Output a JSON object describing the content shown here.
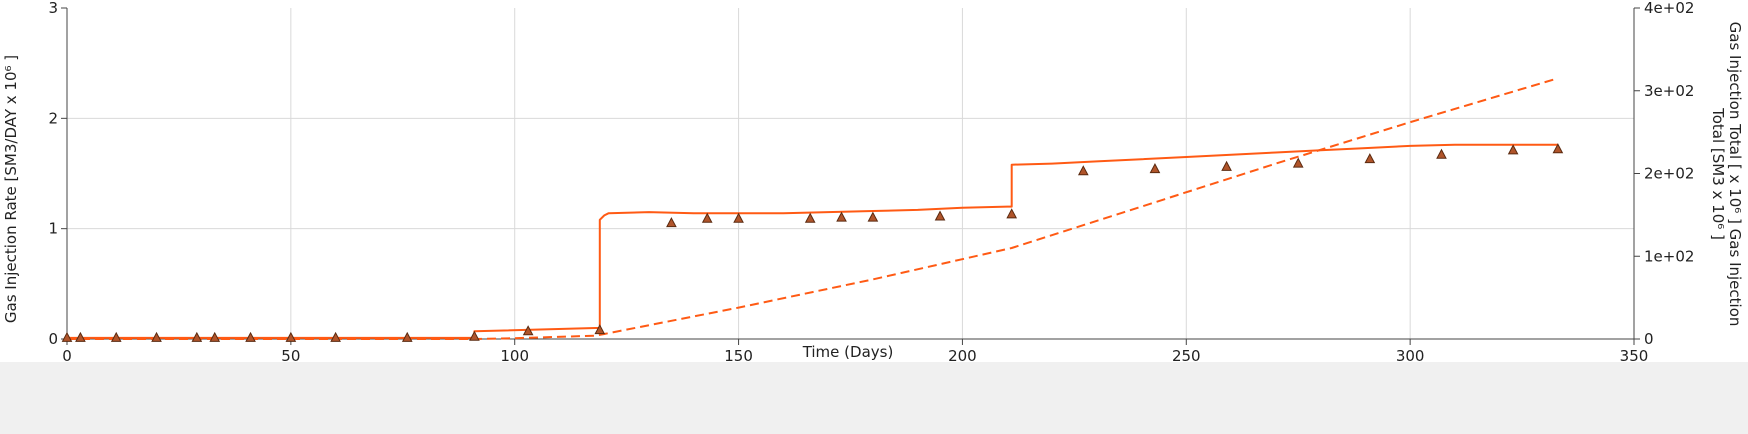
{
  "chart_data": {
    "type": "line",
    "xlabel": "Time (Days)",
    "ylabel": "Gas Injection Rate [SM3/DAY x 10⁶ ]",
    "y2label_lines": [
      "Gas Injection Total [ x 10⁶ ] Gas Injection",
      "Total [SM3 x 10⁶ ]"
    ],
    "xlim": [
      0,
      350
    ],
    "ylim": [
      0,
      3
    ],
    "y2lim": [
      0,
      400
    ],
    "xticks": [
      0,
      50,
      100,
      150,
      200,
      250,
      300,
      350
    ],
    "yticks": [
      0,
      1,
      2,
      3
    ],
    "y2ticks": [
      0,
      100,
      200,
      300,
      400
    ],
    "y2ticklabels": [
      "0",
      "1e+02",
      "2e+02",
      "3e+02",
      "4e+02"
    ],
    "grid": true,
    "colors": {
      "line": "#ff5a14",
      "marker_fill": "#b0542a",
      "marker_edge": "#5a2a10",
      "grid": "#d9d9d9",
      "axis": "#444444"
    },
    "series": [
      {
        "style": "solid-line",
        "axis": "left",
        "x": [
          0,
          91,
          91,
          118,
          119,
          119,
          120,
          121,
          130,
          140,
          150,
          160,
          170,
          180,
          190,
          200,
          210,
          211,
          211,
          220,
          230,
          240,
          250,
          260,
          270,
          280,
          290,
          300,
          310,
          320,
          333
        ],
        "y": [
          0.01,
          0.01,
          0.07,
          0.1,
          0.1,
          1.08,
          1.12,
          1.14,
          1.15,
          1.14,
          1.14,
          1.14,
          1.15,
          1.16,
          1.17,
          1.19,
          1.2,
          1.2,
          1.58,
          1.59,
          1.61,
          1.63,
          1.65,
          1.67,
          1.69,
          1.71,
          1.73,
          1.75,
          1.76,
          1.76,
          1.76
        ]
      },
      {
        "style": "dashed-line",
        "axis": "right",
        "x": [
          0,
          91,
          100,
          118,
          120,
          150,
          180,
          211,
          240,
          270,
          300,
          333
        ],
        "y": [
          0,
          0,
          1,
          4,
          6,
          38,
          72,
          110,
          160,
          212,
          262,
          315
        ]
      },
      {
        "style": "triangle-markers",
        "axis": "left",
        "x": [
          0,
          3,
          11,
          20,
          29,
          33,
          41,
          50,
          60,
          76,
          91,
          103,
          119,
          135,
          143,
          150,
          166,
          173,
          180,
          195,
          211,
          227,
          243,
          259,
          275,
          291,
          307,
          323,
          333
        ],
        "y": [
          0.01,
          0.01,
          0.01,
          0.01,
          0.01,
          0.01,
          0.01,
          0.01,
          0.01,
          0.01,
          0.02,
          0.07,
          0.08,
          1.05,
          1.09,
          1.09,
          1.09,
          1.1,
          1.1,
          1.11,
          1.13,
          1.52,
          1.54,
          1.56,
          1.59,
          1.63,
          1.67,
          1.71,
          1.72
        ]
      }
    ]
  }
}
